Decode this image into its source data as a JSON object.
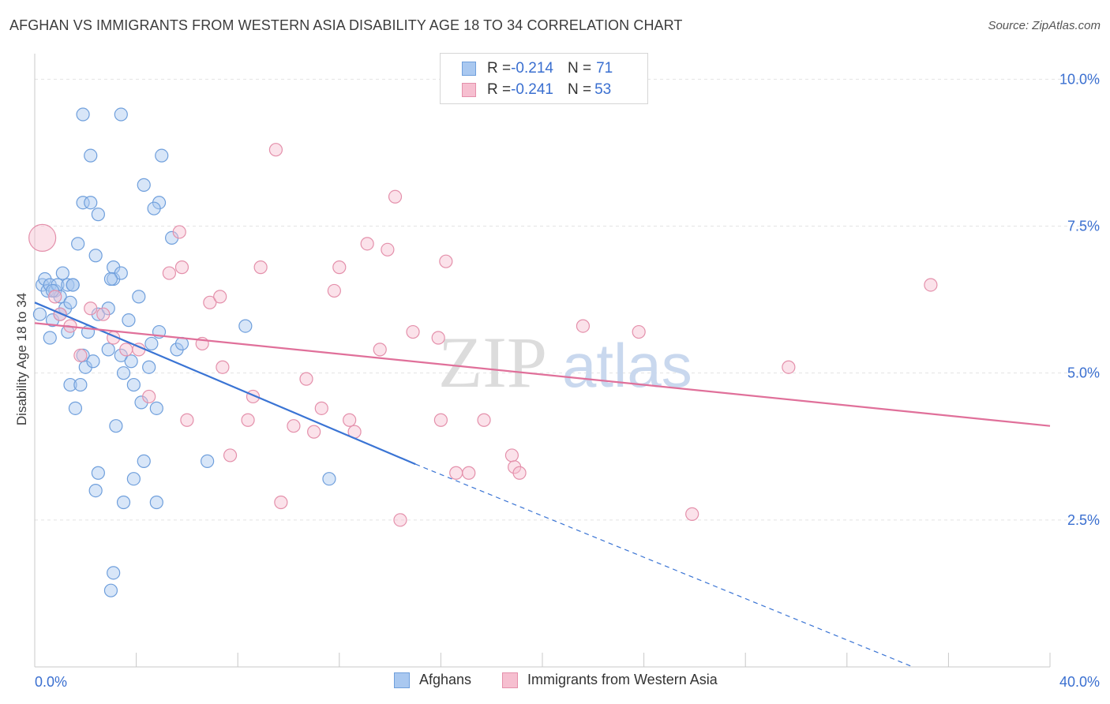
{
  "header": {
    "title": "AFGHAN VS IMMIGRANTS FROM WESTERN ASIA DISABILITY AGE 18 TO 34 CORRELATION CHART",
    "source": "Source: ZipAtlas.com"
  },
  "watermark": {
    "part1": "ZIP",
    "part2": "atlas"
  },
  "legend": {
    "rows": [
      {
        "r_label": "R = ",
        "r_value": "-0.214",
        "n_label": "N = ",
        "n_value": "71",
        "fill": "#a9c8f0",
        "stroke": "#6f9fdc"
      },
      {
        "r_label": "R = ",
        "r_value": "-0.241",
        "n_label": "N = ",
        "n_value": "53",
        "fill": "#f6bfd0",
        "stroke": "#e490ab"
      }
    ]
  },
  "bottom_legend": [
    {
      "label": "Afghans",
      "fill": "#a9c8f0",
      "stroke": "#6f9fdc"
    },
    {
      "label": "Immigrants from Western Asia",
      "fill": "#f6bfd0",
      "stroke": "#e490ab"
    }
  ],
  "chart_data": {
    "type": "scatter",
    "title": "AFGHAN VS IMMIGRANTS FROM WESTERN ASIA DISABILITY AGE 18 TO 34 CORRELATION CHART",
    "xlabel": "",
    "ylabel": "Disability Age 18 to 34",
    "xlim": [
      0,
      40
    ],
    "ylim": [
      0,
      10.3
    ],
    "x_tick_labels": [
      "0.0%",
      "40.0%"
    ],
    "y_ticks": [
      2.5,
      5.0,
      7.5,
      10.0
    ],
    "y_tick_labels": [
      "2.5%",
      "5.0%",
      "7.5%",
      "10.0%"
    ],
    "grid": true,
    "colors": {
      "afghans": "#3a74d4",
      "western_asia": "#e0709a",
      "tick_text": "#3a6fd0"
    },
    "series": [
      {
        "name": "Afghans",
        "color": "#6f9fdc",
        "trend": {
          "x0": 0,
          "y0": 6.2,
          "x1": 15.0,
          "y1": 3.45,
          "dash_to_x": 34.6,
          "dash_to_y": 0.0
        },
        "points": [
          [
            0.2,
            6.0
          ],
          [
            0.3,
            6.5
          ],
          [
            0.4,
            6.6
          ],
          [
            0.5,
            6.4
          ],
          [
            0.6,
            6.5
          ],
          [
            0.7,
            5.9
          ],
          [
            0.8,
            6.4
          ],
          [
            0.9,
            6.5
          ],
          [
            1.0,
            6.3
          ],
          [
            1.1,
            6.7
          ],
          [
            1.2,
            6.1
          ],
          [
            1.3,
            6.5
          ],
          [
            1.4,
            6.2
          ],
          [
            1.5,
            6.5
          ],
          [
            0.6,
            5.6
          ],
          [
            0.7,
            6.4
          ],
          [
            1.0,
            6.0
          ],
          [
            1.3,
            5.7
          ],
          [
            1.7,
            7.2
          ],
          [
            1.4,
            4.8
          ],
          [
            1.6,
            4.4
          ],
          [
            1.8,
            4.8
          ],
          [
            1.9,
            5.3
          ],
          [
            2.0,
            5.1
          ],
          [
            2.1,
            5.7
          ],
          [
            2.3,
            5.2
          ],
          [
            2.5,
            6.0
          ],
          [
            2.9,
            6.1
          ],
          [
            3.1,
            6.6
          ],
          [
            3.4,
            5.3
          ],
          [
            2.5,
            3.3
          ],
          [
            2.4,
            3.0
          ],
          [
            2.4,
            7.0
          ],
          [
            1.5,
            6.5
          ],
          [
            1.9,
            9.4
          ],
          [
            2.2,
            8.7
          ],
          [
            1.9,
            7.9
          ],
          [
            2.2,
            7.9
          ],
          [
            2.5,
            7.7
          ],
          [
            3.1,
            6.8
          ],
          [
            3.4,
            6.7
          ],
          [
            3.7,
            5.9
          ],
          [
            3.9,
            4.8
          ],
          [
            4.2,
            4.5
          ],
          [
            4.5,
            5.1
          ],
          [
            4.8,
            4.4
          ],
          [
            3.5,
            5.0
          ],
          [
            3.8,
            5.2
          ],
          [
            3.2,
            4.1
          ],
          [
            3.5,
            2.8
          ],
          [
            3.9,
            3.2
          ],
          [
            4.3,
            3.5
          ],
          [
            4.8,
            2.8
          ],
          [
            4.3,
            8.2
          ],
          [
            4.9,
            7.9
          ],
          [
            3.4,
            9.4
          ],
          [
            4.7,
            7.8
          ],
          [
            5.0,
            8.7
          ],
          [
            5.4,
            7.3
          ],
          [
            4.9,
            5.7
          ],
          [
            4.6,
            5.5
          ],
          [
            5.6,
            5.4
          ],
          [
            5.8,
            5.5
          ],
          [
            6.8,
            3.5
          ],
          [
            4.1,
            6.3
          ],
          [
            3.0,
            6.6
          ],
          [
            2.9,
            5.4
          ],
          [
            8.3,
            5.8
          ],
          [
            11.6,
            3.2
          ],
          [
            3.0,
            1.3
          ],
          [
            3.1,
            1.6
          ]
        ]
      },
      {
        "name": "Immigrants from Western Asia",
        "color": "#e490ab",
        "trend": {
          "x0": 0,
          "y0": 5.85,
          "x1": 40,
          "y1": 4.1
        },
        "points": [
          [
            0.3,
            7.3
          ],
          [
            0.8,
            6.3
          ],
          [
            1.0,
            6.0
          ],
          [
            1.4,
            5.8
          ],
          [
            1.8,
            5.3
          ],
          [
            2.2,
            6.1
          ],
          [
            2.7,
            6.0
          ],
          [
            3.1,
            5.6
          ],
          [
            3.6,
            5.4
          ],
          [
            4.1,
            5.4
          ],
          [
            4.5,
            4.6
          ],
          [
            5.3,
            6.7
          ],
          [
            5.7,
            7.4
          ],
          [
            5.8,
            6.8
          ],
          [
            6.0,
            4.2
          ],
          [
            6.6,
            5.5
          ],
          [
            6.9,
            6.2
          ],
          [
            7.3,
            6.3
          ],
          [
            7.4,
            5.1
          ],
          [
            7.7,
            3.6
          ],
          [
            8.4,
            4.2
          ],
          [
            8.6,
            4.6
          ],
          [
            8.9,
            6.8
          ],
          [
            9.5,
            8.8
          ],
          [
            9.7,
            2.8
          ],
          [
            10.2,
            4.1
          ],
          [
            10.7,
            4.9
          ],
          [
            11.0,
            4.0
          ],
          [
            11.3,
            4.4
          ],
          [
            11.8,
            6.4
          ],
          [
            12.0,
            6.8
          ],
          [
            12.4,
            4.2
          ],
          [
            12.6,
            4.0
          ],
          [
            13.1,
            7.2
          ],
          [
            13.6,
            5.4
          ],
          [
            13.9,
            7.1
          ],
          [
            14.2,
            8.0
          ],
          [
            14.4,
            2.5
          ],
          [
            14.9,
            5.7
          ],
          [
            16.0,
            4.2
          ],
          [
            16.2,
            6.9
          ],
          [
            17.1,
            3.3
          ],
          [
            17.7,
            4.2
          ],
          [
            18.8,
            3.6
          ],
          [
            18.9,
            3.4
          ],
          [
            19.1,
            3.3
          ],
          [
            21.6,
            5.8
          ],
          [
            23.8,
            5.7
          ],
          [
            25.9,
            2.6
          ],
          [
            29.7,
            5.1
          ],
          [
            35.3,
            6.5
          ],
          [
            15.9,
            5.6
          ],
          [
            16.6,
            3.3
          ]
        ]
      }
    ]
  }
}
